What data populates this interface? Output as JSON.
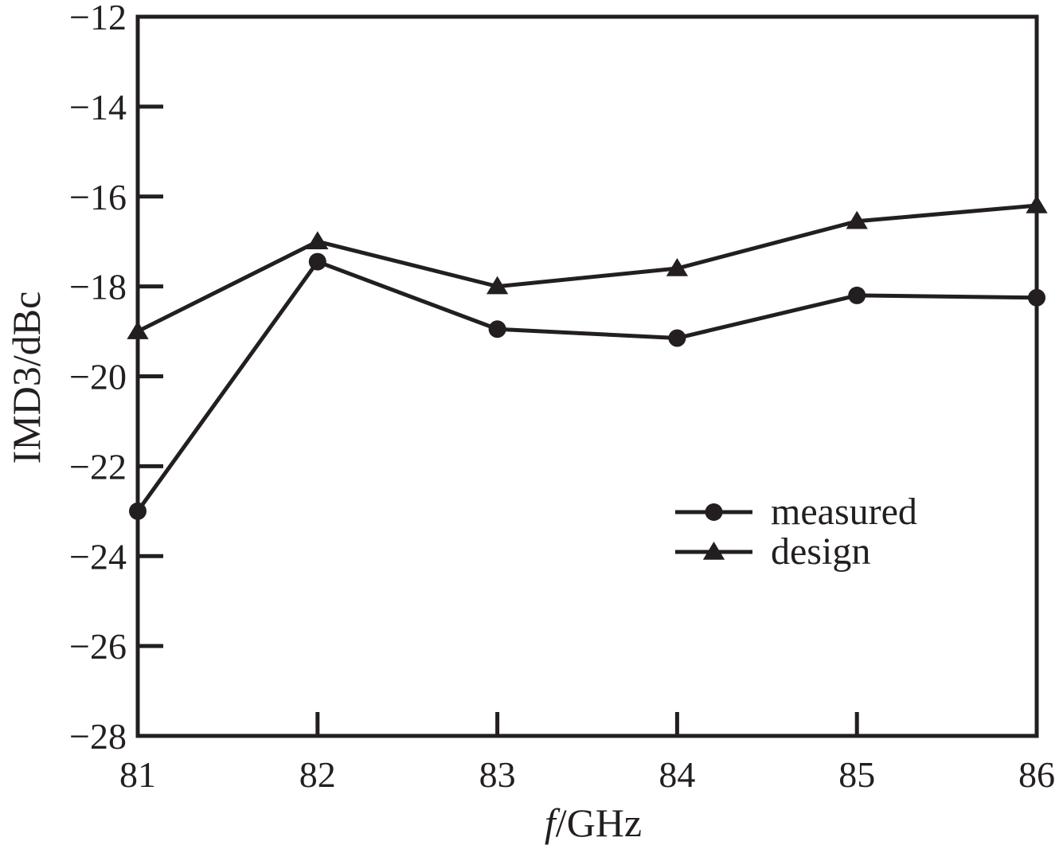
{
  "chart_data": {
    "type": "line",
    "title": "",
    "xlabel_italic": "f",
    "xlabel_rest": "/GHz",
    "ylabel": "IMD3/dBc",
    "x": [
      81,
      82,
      83,
      84,
      85,
      86
    ],
    "xlim": [
      81,
      86
    ],
    "ylim": [
      -28,
      -12
    ],
    "xticks": [
      81,
      82,
      83,
      84,
      85,
      86
    ],
    "xtick_labels": [
      "81",
      "82",
      "83",
      "84",
      "85",
      "86"
    ],
    "yticks": [
      -28,
      -26,
      -24,
      -22,
      -20,
      -18,
      -16,
      -14,
      -12
    ],
    "ytick_labels": [
      "−28",
      "−26",
      "−24",
      "−22",
      "−20",
      "−18",
      "−16",
      "−14",
      "−12"
    ],
    "grid": false,
    "legend_position": "center-right",
    "series": [
      {
        "name": "measured",
        "marker": "circle",
        "values": [
          -23.0,
          -17.45,
          -18.95,
          -19.15,
          -18.2,
          -18.25
        ]
      },
      {
        "name": "design",
        "marker": "triangle",
        "values": [
          -19.0,
          -17.0,
          -18.0,
          -17.6,
          -16.55,
          -16.2
        ]
      }
    ],
    "colors": {
      "line": "#231f20",
      "axis": "#231f20"
    }
  }
}
